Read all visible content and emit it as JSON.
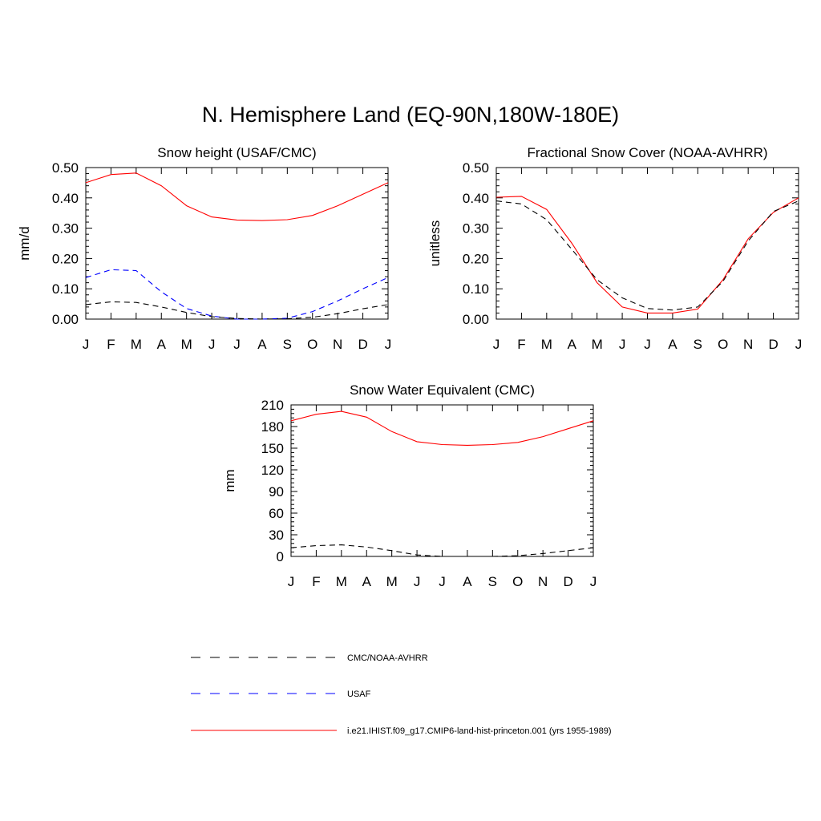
{
  "title": "N. Hemisphere Land (EQ-90N,180W-180E)",
  "colors": {
    "cmc": "#000000",
    "usaf": "#0000ff",
    "model": "#ff0000"
  },
  "legend": [
    {
      "key": "cmc",
      "label": "CMC/NOAA-AVHRR",
      "dash": "12,12"
    },
    {
      "key": "usaf",
      "label": "USAF",
      "dash": "12,12"
    },
    {
      "key": "model",
      "label": "i.e21.IHIST.f09_g17.CMIP6-land-hist-princeton.001 (yrs 1955-1989)",
      "dash": ""
    }
  ],
  "chart_data": [
    {
      "type": "line",
      "title": "Snow height (USAF/CMC)",
      "ylabel": "mm/d",
      "ylim": [
        0,
        0.5
      ],
      "yticks": [
        "0.00",
        "0.10",
        "0.20",
        "0.30",
        "0.40",
        "0.50"
      ],
      "x": [
        "J",
        "F",
        "M",
        "A",
        "M",
        "J",
        "J",
        "A",
        "S",
        "O",
        "N",
        "D",
        "J"
      ],
      "series": [
        {
          "key": "model",
          "name": "i.e21.IHIST.f09_g17.CMIP6-land-hist-princeton.001 (yrs 1955-1989)",
          "values": [
            0.45,
            0.477,
            0.482,
            0.44,
            0.374,
            0.337,
            0.327,
            0.325,
            0.328,
            0.342,
            0.374,
            0.412,
            0.45
          ]
        },
        {
          "key": "usaf",
          "name": "USAF",
          "values": [
            0.137,
            0.163,
            0.16,
            0.09,
            0.035,
            0.01,
            0.0,
            0.0,
            0.003,
            0.025,
            0.06,
            0.1,
            0.137
          ]
        },
        {
          "key": "cmc",
          "name": "CMC/NOAA-AVHRR",
          "values": [
            0.048,
            0.057,
            0.055,
            0.04,
            0.022,
            0.008,
            0.002,
            0.0,
            0.001,
            0.006,
            0.018,
            0.034,
            0.048
          ]
        }
      ]
    },
    {
      "type": "line",
      "title": "Fractional Snow Cover (NOAA-AVHRR)",
      "ylabel": "unitless",
      "ylim": [
        0,
        0.5
      ],
      "yticks": [
        "0.00",
        "0.10",
        "0.20",
        "0.30",
        "0.40",
        "0.50"
      ],
      "x": [
        "J",
        "F",
        "M",
        "A",
        "M",
        "J",
        "J",
        "A",
        "S",
        "O",
        "N",
        "D",
        "J"
      ],
      "series": [
        {
          "key": "model",
          "name": "i.e21.IHIST.f09_g17.CMIP6-land-hist-princeton.001 (yrs 1955-1989)",
          "values": [
            0.402,
            0.405,
            0.362,
            0.25,
            0.12,
            0.04,
            0.02,
            0.02,
            0.033,
            0.13,
            0.265,
            0.352,
            0.4
          ]
        },
        {
          "key": "cmc",
          "name": "CMC/NOAA-AVHRR",
          "values": [
            0.39,
            0.38,
            0.328,
            0.23,
            0.13,
            0.07,
            0.035,
            0.03,
            0.04,
            0.125,
            0.258,
            0.355,
            0.39
          ]
        }
      ]
    },
    {
      "type": "line",
      "title": "Snow Water Equivalent (CMC)",
      "ylabel": "mm",
      "ylim": [
        0,
        210
      ],
      "yticks": [
        "0",
        "30",
        "60",
        "90",
        "120",
        "150",
        "180",
        "210"
      ],
      "x": [
        "J",
        "F",
        "M",
        "A",
        "M",
        "J",
        "J",
        "A",
        "S",
        "O",
        "N",
        "D",
        "J"
      ],
      "series": [
        {
          "key": "model",
          "name": "i.e21.IHIST.f09_g17.CMIP6-land-hist-princeton.001 (yrs 1955-1989)",
          "values": [
            188,
            197,
            201,
            193,
            173,
            159,
            155,
            154,
            155,
            158,
            166,
            177,
            188
          ]
        },
        {
          "key": "cmc",
          "name": "CMC/NOAA-AVHRR",
          "values": [
            12,
            15,
            16,
            13,
            8,
            2,
            0,
            0,
            0,
            1,
            4,
            8,
            12
          ]
        }
      ]
    }
  ]
}
